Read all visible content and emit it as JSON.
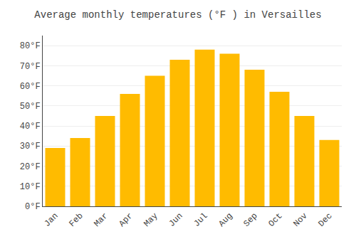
{
  "chart_data": {
    "type": "bar",
    "title": "Average monthly temperatures (°F ) in Versailles",
    "categories": [
      "Jan",
      "Feb",
      "Mar",
      "Apr",
      "May",
      "Jun",
      "Jul",
      "Aug",
      "Sep",
      "Oct",
      "Nov",
      "Dec"
    ],
    "values": [
      29,
      34,
      45,
      56,
      65,
      73,
      78,
      76,
      68,
      57,
      45,
      33
    ],
    "color": "#FFBB00",
    "ylim": [
      0,
      85
    ],
    "yticks": [
      {
        "value": 0,
        "label": "0°F"
      },
      {
        "value": 10,
        "label": "10°F"
      },
      {
        "value": 20,
        "label": "20°F"
      },
      {
        "value": 30,
        "label": "30°F"
      },
      {
        "value": 40,
        "label": "40°F"
      },
      {
        "value": 50,
        "label": "50°F"
      },
      {
        "value": 60,
        "label": "60°F"
      },
      {
        "value": 70,
        "label": "70°F"
      },
      {
        "value": 80,
        "label": "80°F"
      }
    ],
    "grid": true
  }
}
